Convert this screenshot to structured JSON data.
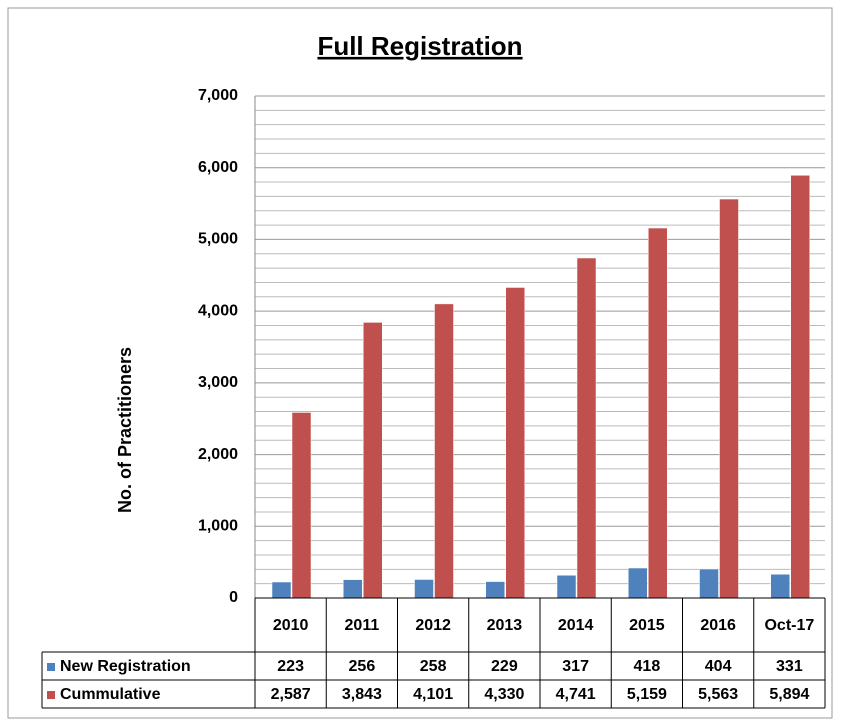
{
  "chart_data": {
    "type": "bar",
    "title": "Full Registration",
    "y_label": "No. of Practitioners",
    "categories": [
      "2010",
      "2011",
      "2012",
      "2013",
      "2014",
      "2015",
      "2016",
      "Oct-17"
    ],
    "series": [
      {
        "name": "New Registration",
        "color": "#4f81bd",
        "values": [
          223,
          256,
          258,
          229,
          317,
          418,
          404,
          331
        ]
      },
      {
        "name": "Cummulative",
        "color": "#c0504d",
        "values": [
          2587,
          3843,
          4101,
          4330,
          4741,
          5159,
          5563,
          5894
        ],
        "value_labels": [
          "2,587",
          "3,843",
          "4,101",
          "4,330",
          "4,741",
          "5,159",
          "5,563",
          "5,894"
        ]
      }
    ],
    "ylim": [
      0,
      7000
    ],
    "yticks": [
      {
        "value": 0,
        "label": "0"
      },
      {
        "value": 1000,
        "label": "1,000"
      },
      {
        "value": 2000,
        "label": "2,000"
      },
      {
        "value": 3000,
        "label": "3,000"
      },
      {
        "value": 4000,
        "label": "4,000"
      },
      {
        "value": 5000,
        "label": "5,000"
      },
      {
        "value": 6000,
        "label": "6,000"
      },
      {
        "value": 7000,
        "label": "7,000"
      }
    ],
    "grid": true
  }
}
